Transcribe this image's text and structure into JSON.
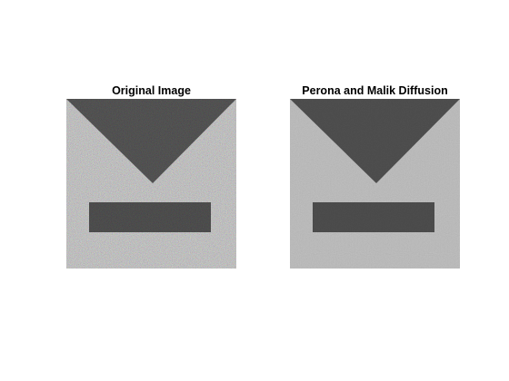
{
  "figure": {
    "background_color": "#ffffff",
    "panels": [
      {
        "title": "Original Image",
        "image": {
          "description_icon": "noisy-grayscale-image-icon",
          "background_gray": "#bdbdbd",
          "shape_gray": "#505050",
          "noise": "strong-color-speckle"
        }
      },
      {
        "title": "Perona and Malik Diffusion",
        "image": {
          "description_icon": "smoothed-grayscale-image-icon",
          "background_gray": "#b9b9b9",
          "shape_gray": "#4d4d4d",
          "noise": "weak-gray-speckle"
        }
      }
    ]
  }
}
